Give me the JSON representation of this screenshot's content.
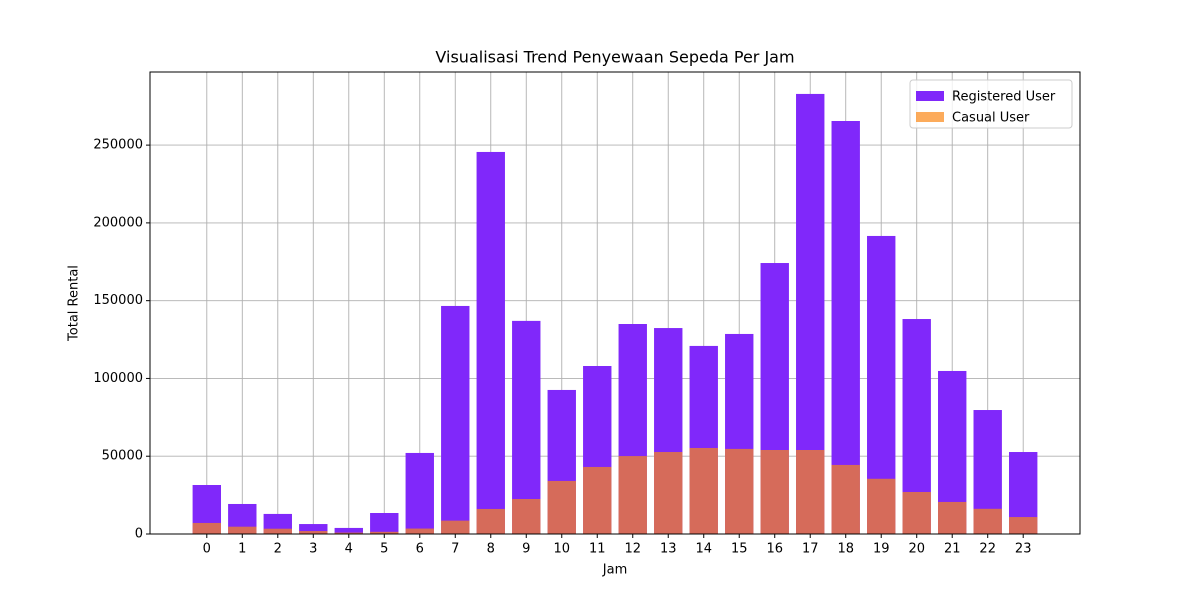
{
  "chart_data": {
    "type": "bar",
    "title": "Visualisasi Trend Penyewaan Sepeda Per Jam",
    "x_label": "Jam",
    "y_label": "Total Rental",
    "categories": [
      "0",
      "1",
      "2",
      "3",
      "4",
      "5",
      "6",
      "7",
      "8",
      "9",
      "10",
      "11",
      "12",
      "13",
      "14",
      "15",
      "16",
      "17",
      "18",
      "19",
      "20",
      "21",
      "22",
      "23"
    ],
    "series": [
      {
        "name": "Registered User",
        "color": "#8028fa",
        "opacity": 1,
        "values": [
          31500,
          19300,
          12900,
          6400,
          3900,
          13500,
          52100,
          146600,
          245600,
          137000,
          92600,
          108000,
          135000,
          132400,
          120900,
          128600,
          174200,
          282900,
          265500,
          191600,
          138200,
          104800,
          79700,
          52700
        ]
      },
      {
        "name": "Casual User",
        "color": "#fb8815",
        "opacity": 0.7,
        "values": [
          7100,
          4700,
          3400,
          1900,
          900,
          1400,
          3500,
          8600,
          16100,
          22500,
          34100,
          43100,
          50100,
          52700,
          55300,
          54700,
          54000,
          54000,
          44400,
          35500,
          27000,
          20600,
          16200,
          10900
        ]
      }
    ],
    "ylim": [
      0,
      297000
    ],
    "yticks": [
      0,
      50000,
      100000,
      150000,
      200000,
      250000
    ],
    "grid": true,
    "legend": "upper right"
  }
}
